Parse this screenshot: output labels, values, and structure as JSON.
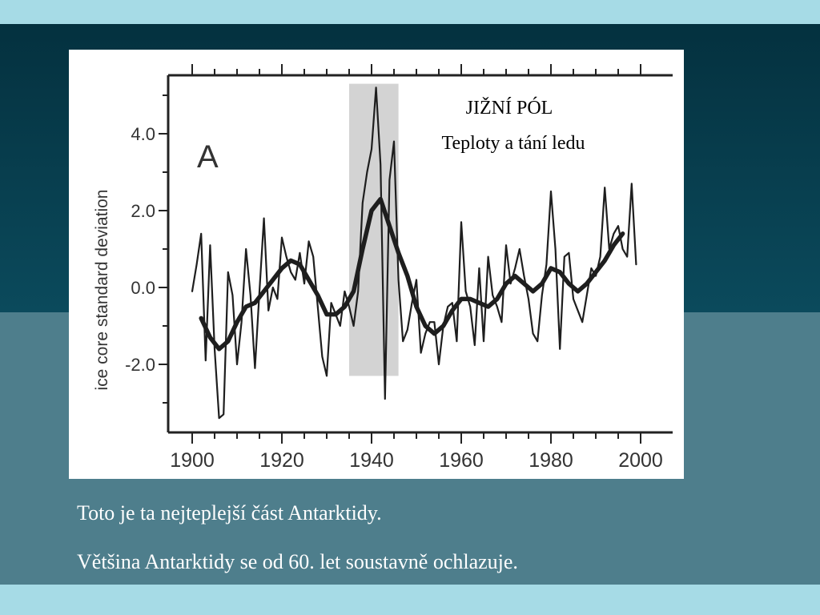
{
  "slide": {
    "caption_1": "Toto je ta nejteplejší část Antarktidy.",
    "caption_2": "Většina Antarktidy se od 60. let soustavně ochlazuje.",
    "colors": {
      "top_band": "#a6dbe6",
      "dark_band": "#04313f",
      "mid_band": "#4e7e8c",
      "text": "#ffffff"
    }
  },
  "chart_data": {
    "type": "line",
    "title": "",
    "panel_label": "A",
    "annotation_line_1": "JIŽNÍ PÓL",
    "annotation_line_2": "Teploty  a tání ledu",
    "xlabel": "",
    "ylabel": "ice core standard deviation",
    "xlim": [
      1900,
      2000
    ],
    "ylim": [
      -3.8,
      5.5
    ],
    "xticks": [
      "1900",
      "1920",
      "1940",
      "1960",
      "1980",
      "2000"
    ],
    "yticks": [
      "4.0",
      "2.0",
      "0.0",
      "-2.0"
    ],
    "grid": false,
    "highlight_band": {
      "x": [
        1935,
        1946
      ],
      "y": [
        -2.3,
        5.3
      ],
      "color": "#d3d3d3"
    },
    "series": [
      {
        "style": "thin",
        "x": [
          1900,
          1901,
          1902,
          1903,
          1904,
          1905,
          1906,
          1907,
          1908,
          1909,
          1910,
          1911,
          1912,
          1913,
          1914,
          1915,
          1916,
          1917,
          1918,
          1919,
          1920,
          1921,
          1922,
          1923,
          1924,
          1925,
          1926,
          1927,
          1928,
          1929,
          1930,
          1931,
          1932,
          1933,
          1934,
          1935,
          1936,
          1937,
          1938,
          1939,
          1940,
          1941,
          1942,
          1943,
          1944,
          1945,
          1946,
          1947,
          1948,
          1949,
          1950,
          1951,
          1952,
          1953,
          1954,
          1955,
          1956,
          1957,
          1958,
          1959,
          1960,
          1961,
          1962,
          1963,
          1964,
          1965,
          1966,
          1967,
          1968,
          1969,
          1970,
          1971,
          1972,
          1973,
          1974,
          1975,
          1976,
          1977,
          1978,
          1979,
          1980,
          1981,
          1982,
          1983,
          1984,
          1985,
          1986,
          1987,
          1988,
          1989,
          1990,
          1991,
          1992,
          1993,
          1994,
          1995,
          1996,
          1997,
          1998,
          1999
        ],
        "values": [
          -0.1,
          0.6,
          1.4,
          -1.9,
          1.1,
          -1.6,
          -3.4,
          -3.3,
          0.4,
          -0.2,
          -2.0,
          -0.9,
          1.0,
          -0.2,
          -2.1,
          -0.1,
          1.8,
          -0.6,
          0.0,
          -0.3,
          1.3,
          0.8,
          0.4,
          0.2,
          0.9,
          0.1,
          1.2,
          0.8,
          -0.5,
          -1.8,
          -2.3,
          -0.4,
          -0.7,
          -1.0,
          -0.1,
          -0.5,
          -1.0,
          -0.1,
          2.2,
          3.0,
          3.6,
          5.2,
          3.2,
          -2.9,
          2.8,
          3.8,
          0.2,
          -1.4,
          -1.1,
          -0.4,
          0.2,
          -1.7,
          -1.2,
          -0.9,
          -0.9,
          -2.0,
          -1.0,
          -0.5,
          -0.4,
          -1.4,
          1.7,
          -0.1,
          -0.5,
          -1.5,
          0.5,
          -1.4,
          0.8,
          -0.2,
          -0.5,
          -0.9,
          1.1,
          0.1,
          0.5,
          1.0,
          0.3,
          -0.3,
          -1.2,
          -1.4,
          -0.2,
          0.6,
          2.5,
          1.0,
          -1.6,
          0.8,
          0.9,
          -0.3,
          -0.6,
          -0.9,
          -0.2,
          0.5,
          0.3,
          0.8,
          2.6,
          1.0,
          1.4,
          1.6,
          1.0,
          0.8,
          2.7,
          0.6
        ]
      },
      {
        "style": "thick-smoothed",
        "x": [
          1902,
          1904,
          1906,
          1908,
          1910,
          1912,
          1914,
          1916,
          1918,
          1920,
          1922,
          1924,
          1926,
          1928,
          1930,
          1932,
          1934,
          1936,
          1938,
          1940,
          1942,
          1944,
          1946,
          1948,
          1950,
          1952,
          1954,
          1956,
          1958,
          1960,
          1962,
          1964,
          1966,
          1968,
          1970,
          1972,
          1974,
          1976,
          1978,
          1980,
          1982,
          1984,
          1986,
          1988,
          1990,
          1992,
          1994,
          1996
        ],
        "values": [
          -0.8,
          -1.3,
          -1.6,
          -1.4,
          -0.9,
          -0.5,
          -0.4,
          -0.1,
          0.2,
          0.5,
          0.7,
          0.6,
          0.2,
          -0.2,
          -0.7,
          -0.7,
          -0.5,
          -0.1,
          1.0,
          2.0,
          2.3,
          1.6,
          0.9,
          0.3,
          -0.5,
          -1.0,
          -1.2,
          -1.0,
          -0.6,
          -0.3,
          -0.3,
          -0.4,
          -0.5,
          -0.3,
          0.1,
          0.3,
          0.1,
          -0.1,
          0.1,
          0.5,
          0.4,
          0.1,
          -0.1,
          0.1,
          0.4,
          0.7,
          1.1,
          1.4
        ]
      }
    ]
  }
}
